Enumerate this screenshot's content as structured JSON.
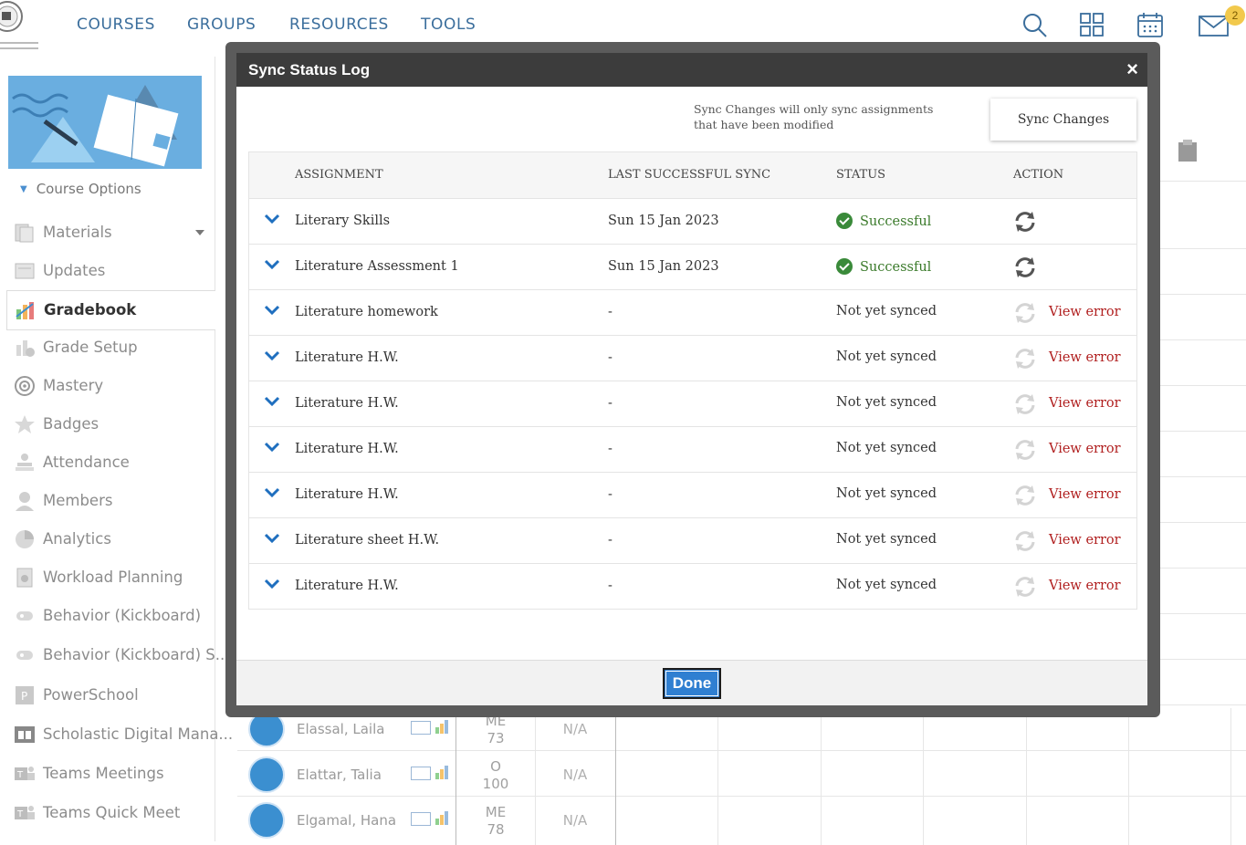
{
  "nav": {
    "items": [
      "COURSES",
      "GROUPS",
      "RESOURCES",
      "TOOLS"
    ],
    "mail_badge": "2"
  },
  "sidebar": {
    "course_options": "Course Options",
    "items": [
      {
        "label": "Materials",
        "icon": "materials-icon"
      },
      {
        "label": "Updates",
        "icon": "updates-icon"
      },
      {
        "label": "Gradebook",
        "icon": "gradebook-icon",
        "active": true
      },
      {
        "label": "Grade Setup",
        "icon": "grade-setup-icon"
      },
      {
        "label": "Mastery",
        "icon": "mastery-icon"
      },
      {
        "label": "Badges",
        "icon": "badges-icon"
      },
      {
        "label": "Attendance",
        "icon": "attendance-icon"
      },
      {
        "label": "Members",
        "icon": "members-icon"
      },
      {
        "label": "Analytics",
        "icon": "analytics-icon"
      },
      {
        "label": "Workload Planning",
        "icon": "workload-icon"
      },
      {
        "label": "Behavior (Kickboard)",
        "icon": "kickboard-icon"
      },
      {
        "label": "Behavior (Kickboard) S...",
        "icon": "kickboard-icon"
      },
      {
        "label": "PowerSchool",
        "icon": "powerschool-icon"
      },
      {
        "label": "Scholastic Digital Mana...",
        "icon": "scholastic-icon"
      },
      {
        "label": "Teams Meetings",
        "icon": "teams-icon"
      },
      {
        "label": "Teams Quick Meet",
        "icon": "teams-icon"
      }
    ]
  },
  "students": [
    {
      "name": "Elassal, Laila",
      "grade_letter": "ME",
      "grade_value": "73",
      "second": "N/A"
    },
    {
      "name": "Elattar, Talia",
      "grade_letter": "O",
      "grade_value": "100",
      "second": "N/A"
    },
    {
      "name": "Elgamal, Hana",
      "grade_letter": "ME",
      "grade_value": "78",
      "second": "N/A"
    }
  ],
  "modal": {
    "title": "Sync Status Log",
    "close": "×",
    "note": "Sync Changes will only sync assignments that have been modified",
    "sync_button": "Sync Changes",
    "columns": [
      "ASSIGNMENT",
      "LAST SUCCESSFUL SYNC",
      "STATUS",
      "ACTION"
    ],
    "rows": [
      {
        "assignment": "Literary Skills",
        "sync": "Sun 15 Jan 2023",
        "status": "Successful",
        "ok": true
      },
      {
        "assignment": "Literature Assessment 1",
        "sync": "Sun 15 Jan 2023",
        "status": "Successful",
        "ok": true
      },
      {
        "assignment": "Literature homework",
        "sync": "-",
        "status": "Not yet synced",
        "ok": false,
        "action": "View error"
      },
      {
        "assignment": "Literature H.W.",
        "sync": "-",
        "status": "Not yet synced",
        "ok": false,
        "action": "View error"
      },
      {
        "assignment": "Literature H.W.",
        "sync": "-",
        "status": "Not yet synced",
        "ok": false,
        "action": "View error"
      },
      {
        "assignment": "Literature H.W.",
        "sync": "-",
        "status": "Not yet synced",
        "ok": false,
        "action": "View error"
      },
      {
        "assignment": "Literature H.W.",
        "sync": "-",
        "status": "Not yet synced",
        "ok": false,
        "action": "View error"
      },
      {
        "assignment": "Literature sheet H.W.",
        "sync": "-",
        "status": "Not yet synced",
        "ok": false,
        "action": "View error"
      },
      {
        "assignment": "Literature H.W.",
        "sync": "-",
        "status": "Not yet synced",
        "ok": false,
        "action": "View error"
      }
    ],
    "done_button": "Done"
  }
}
